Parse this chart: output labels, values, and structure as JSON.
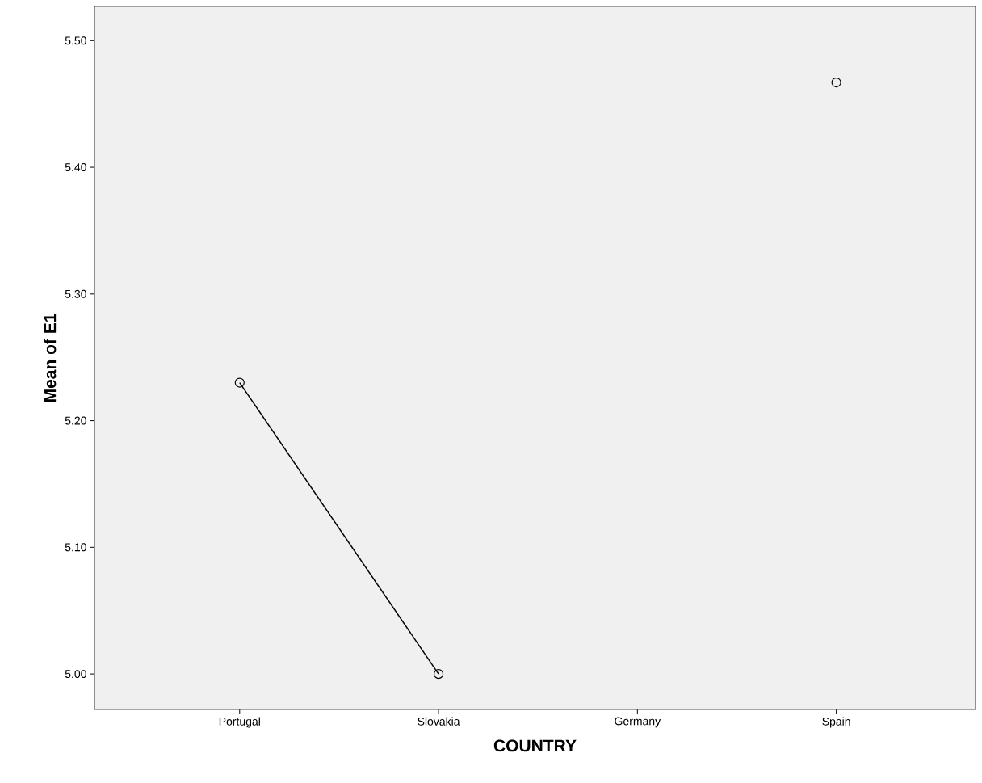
{
  "chart_data": {
    "type": "line",
    "xlabel": "COUNTRY",
    "ylabel": "Mean of E1",
    "categories": [
      "Portugal",
      "Slovakia",
      "Germany",
      "Spain"
    ],
    "values": [
      5.23,
      5.0,
      null,
      5.467
    ],
    "color": "#000000",
    "marker": "circle",
    "line_style": "solid",
    "ylim": [
      4.972,
      5.527
    ],
    "yticks": [
      {
        "value": 5.0,
        "label": "5.00"
      },
      {
        "value": 5.1,
        "label": "5.10"
      },
      {
        "value": 5.2,
        "label": "5.20"
      },
      {
        "value": 5.3,
        "label": "5.30"
      },
      {
        "value": 5.4,
        "label": "5.40"
      },
      {
        "value": 5.5,
        "label": "5.50"
      }
    ],
    "grid": false
  }
}
